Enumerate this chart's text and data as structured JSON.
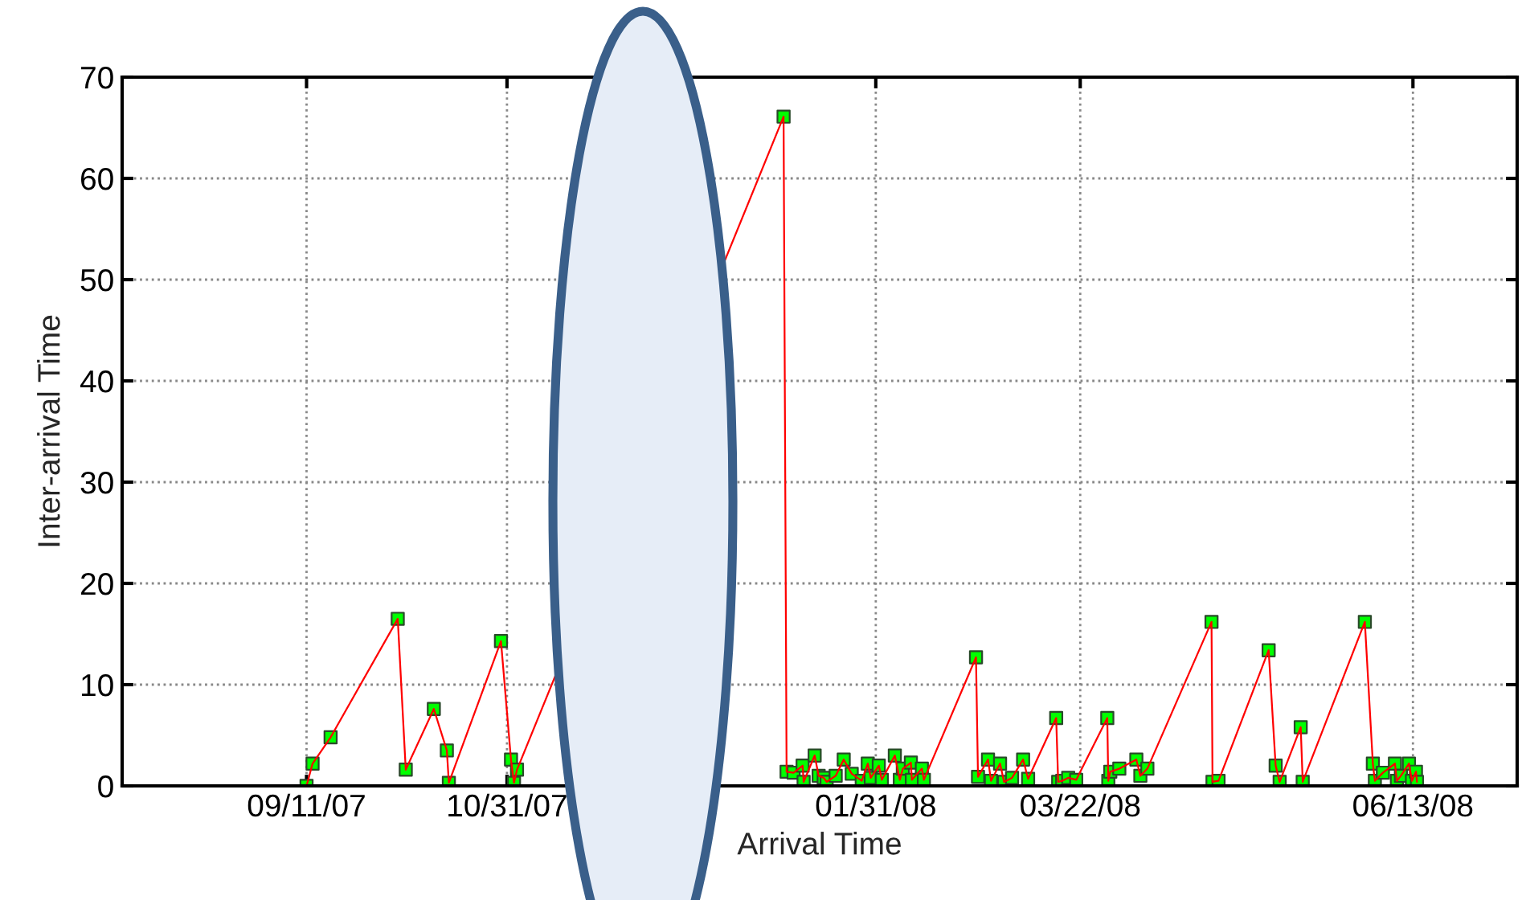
{
  "chart_data": {
    "type": "line",
    "xlabel": "Arrival Time",
    "ylabel": "Inter-arrival Time",
    "xlim": [
      "2007-07-27",
      "2008-07-09"
    ],
    "xticks": [
      {
        "value": "2007-09-11",
        "label": "09/11/07"
      },
      {
        "value": "2007-10-31",
        "label": "10/31/07"
      },
      {
        "value": "2008-01-31",
        "label": "01/31/08"
      },
      {
        "value": "2008-03-22",
        "label": "03/22/08"
      },
      {
        "value": "2008-06-13",
        "label": "06/13/08"
      }
    ],
    "ylim": [
      0,
      70
    ],
    "yticks": [
      0,
      10,
      20,
      30,
      40,
      50,
      60,
      70
    ],
    "grid": true,
    "marker": "square",
    "line_style": "solid",
    "series": [
      {
        "color": "#ff0000",
        "colors": [
          "#00ff00",
          "#00ff00",
          "#00ff00",
          "#00ff00",
          "#00ff00",
          "#00ff00",
          "#00ff00",
          "#00ff00",
          "#00ff00",
          "#00ff00",
          "#00ff00",
          "#00ff00",
          "#00ff00",
          "#00ff00",
          "#00ff00",
          "#00ff00",
          "#00ff00",
          "#00ff00",
          "#00ff00",
          "#00ff00",
          "#00ff00",
          "#00ff00",
          "#00ff00",
          "#00ff00",
          "#00ff00",
          "#00ff00",
          "#00ff00",
          "#00ff00",
          "#00ff00",
          "#00ff00",
          "#00ff00",
          "#00ff00",
          "#00ff00",
          "#00ff00",
          "#00ff00",
          "#00ff00",
          "#00ff00",
          "#00ff00",
          "#00ff00",
          "#00ff00",
          "#00ff00",
          "#00ff00",
          "#00ff00",
          "#00ff00",
          "#00ff00",
          "#00ff00",
          "#00ff00",
          "#00ff00",
          "#00ff00",
          "#00ff00",
          "#00ff00",
          "#00ff00",
          "#00ff00",
          "#00ff00",
          "#00ff00",
          "#00ff00",
          "#00ff00",
          "#00ff00",
          "#00ff00",
          "#00ff00",
          "#00ff00",
          "#00ff00",
          "#00ff00",
          "#00ff00",
          "#00ff00",
          "#00ff00",
          "#00ff00",
          "#00ff00",
          "#00ff00",
          "#00ff00",
          "#00ff00",
          "#00ff00",
          "#00ff00",
          "#00ff00",
          "#00ff00",
          "#00ff00"
        ],
        "x": [
          "2007-09-11",
          "2007-09-12T12:00",
          "2007-09-17",
          "2007-10-03T18:00",
          "2007-10-05T18:00",
          "2007-10-12T18:00",
          "2007-10-16",
          "2007-10-16T12:00",
          "2007-10-29T12:00",
          "2007-11-01",
          "2007-11-01T18:00",
          "2007-11-02T12:00",
          "2008-01-08",
          "2008-01-08T18:00",
          "2008-01-10T12:00",
          "2008-01-12T18:00",
          "2008-01-13",
          "2008-01-15T18:00",
          "2008-01-16T18:00",
          "2008-01-18",
          "2008-01-18T18:00",
          "2008-01-21",
          "2008-01-23",
          "2008-01-25",
          "2008-01-27T12:00",
          "2008-01-29",
          "2008-01-29T18:00",
          "2008-01-31T18:00",
          "2008-02-01T12:00",
          "2008-02-04T18:00",
          "2008-02-06",
          "2008-02-06T18:00",
          "2008-02-08T18:00",
          "2008-02-09",
          "2008-02-11T12:00",
          "2008-02-12",
          "2008-02-25",
          "2008-02-25T12:00",
          "2008-02-28",
          "2008-02-28T18:00",
          "2008-03-02",
          "2008-03-03",
          "2008-03-05",
          "2008-03-07T18:00",
          "2008-03-09",
          "2008-03-16",
          "2008-03-16T12:00",
          "2008-03-17T12:00",
          "2008-03-19",
          "2008-03-21",
          "2008-03-28T18:00",
          "2008-03-29",
          "2008-03-29T12:00",
          "2008-03-31T18:00",
          "2008-04-05",
          "2008-04-06",
          "2008-04-07T18:00",
          "2008-04-23T18:00",
          "2008-04-24",
          "2008-04-25T12:00",
          "2008-05-08",
          "2008-05-09T18:00",
          "2008-05-10T18:00",
          "2008-05-16",
          "2008-05-16T12:00",
          "2008-06-01",
          "2008-06-03",
          "2008-06-03T12:00",
          "2008-06-05T12:00",
          "2008-06-08T12:00",
          "2008-06-09",
          "2008-06-10",
          "2008-06-12",
          "2008-06-12T18:00",
          "2008-06-13T18:00",
          "2008-06-14"
        ],
        "values": [
          0,
          2.2,
          4.8,
          16.5,
          1.6,
          7.6,
          3.5,
          0.3,
          14.3,
          2.6,
          0.3,
          1.6,
          66.1,
          1.4,
          1.3,
          2.0,
          0.4,
          3.0,
          1.0,
          0.8,
          0.4,
          1.0,
          2.6,
          1.2,
          0.5,
          2.2,
          0.8,
          2.0,
          0.6,
          3.0,
          0.6,
          1.7,
          2.3,
          0.6,
          1.7,
          0.6,
          12.7,
          0.9,
          2.6,
          0.5,
          2.2,
          0.4,
          0.8,
          2.6,
          0.7,
          6.7,
          0.4,
          0.5,
          0.8,
          0.6,
          6.7,
          0.5,
          1.4,
          1.7,
          2.6,
          1.0,
          1.7,
          16.2,
          0.4,
          0.5,
          13.4,
          2.0,
          0.4,
          5.8,
          0.4,
          16.2,
          2.2,
          0.5,
          1.3,
          2.2,
          0.5,
          1.0,
          2.2,
          0.5,
          1.4,
          0.4
        ]
      }
    ]
  }
}
